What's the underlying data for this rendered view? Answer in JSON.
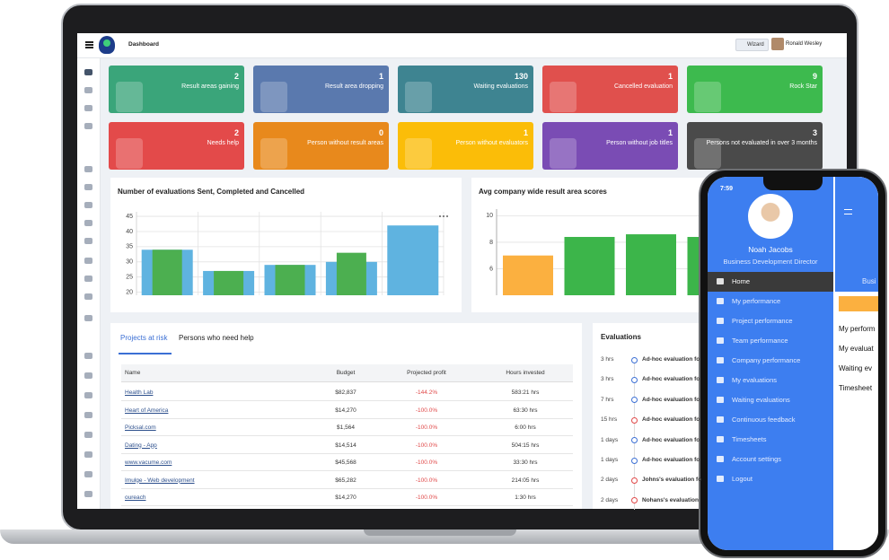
{
  "header": {
    "title": "Dashboard",
    "wizard": "Wizard",
    "user": "Ronald Wesley"
  },
  "tiles": [
    {
      "count": 2,
      "label": "Result areas gaining",
      "color": "#3aa57a"
    },
    {
      "count": 1,
      "label": "Result area dropping",
      "color": "#5a79ae"
    },
    {
      "count": 130,
      "label": "Waiting evaluations",
      "color": "#3e8491"
    },
    {
      "count": 1,
      "label": "Cancelled evaluation",
      "color": "#e0504d"
    },
    {
      "count": 9,
      "label": "Rock Star",
      "color": "#3dba4e"
    },
    {
      "count": 2,
      "label": "Needs help",
      "color": "#e34a4a"
    },
    {
      "count": 0,
      "label": "Person without result areas",
      "color": "#e8891c"
    },
    {
      "count": 1,
      "label": "Person without evaluators",
      "color": "#fbbd08"
    },
    {
      "count": 1,
      "label": "Person without job titles",
      "color": "#7a4cb4"
    },
    {
      "count": 3,
      "label": "Persons not evaluated in over 3 months",
      "color": "#4a4a4a"
    }
  ],
  "charts": [
    {
      "title": "Number of evaluations Sent, Completed and Cancelled",
      "ylim": [
        19,
        46.5
      ],
      "yticks": [
        20,
        25,
        30,
        35,
        40,
        45
      ],
      "series": [
        {
          "color": "#5fb3e0",
          "values": [
            34,
            27,
            29,
            30,
            42
          ]
        },
        {
          "color": "#4caf50",
          "values": [
            34,
            27,
            29,
            33,
            null
          ]
        }
      ]
    },
    {
      "title": "Avg company wide result area scores",
      "ylim": [
        4,
        10.5
      ],
      "yticks": [
        6,
        8,
        10
      ],
      "values": [
        7,
        8.4,
        8.6,
        8.4
      ],
      "colors": [
        "#fbb040",
        "#3cb54a",
        "#3cb54a",
        "#3cb54a"
      ]
    }
  ],
  "table": {
    "tabs": [
      "Projects at risk",
      "Persons who need help"
    ],
    "columns": [
      "Name",
      "Budget",
      "Projected profit",
      "Hours invested"
    ],
    "rows": [
      [
        "Health Lab",
        "$82,837",
        "-144.2%",
        "583:21 hrs"
      ],
      [
        "Heart of America",
        "$14,270",
        "-100.0%",
        "63:30 hrs"
      ],
      [
        "Picksal.com",
        "$1,564",
        "-100.0%",
        "6:00 hrs"
      ],
      [
        "Dating - App",
        "$14,514",
        "-100.0%",
        "504:15 hrs"
      ],
      [
        "www.vacume.com",
        "$45,568",
        "-100.0%",
        "33:30 hrs"
      ],
      [
        "Imulge - Web development",
        "$65,282",
        "-100.0%",
        "214:05 hrs"
      ],
      [
        "oureach",
        "$14,270",
        "-100.0%",
        "1:30 hrs"
      ]
    ]
  },
  "evaluations": {
    "title": "Evaluations",
    "items": [
      {
        "time": "3 hrs",
        "text": "Ad-hoc evaluation fo",
        "dot": "#3b6fd4"
      },
      {
        "time": "3 hrs",
        "text": "Ad-hoc evaluation fo",
        "dot": "#3b6fd4"
      },
      {
        "time": "7 hrs",
        "text": "Ad-hoc evaluation fo",
        "dot": "#3b6fd4"
      },
      {
        "time": "15 hrs",
        "text": "Ad-hoc evaluation fo",
        "dot": "#e04848"
      },
      {
        "time": "1 days",
        "text": "Ad-hoc evaluation fo",
        "dot": "#3b6fd4"
      },
      {
        "time": "1 days",
        "text": "Ad-hoc evaluation fo",
        "dot": "#3b6fd4"
      },
      {
        "time": "2 days",
        "text": "Johns's evaluation fo",
        "dot": "#e04848"
      },
      {
        "time": "2 days",
        "text": "Nohans's evaluation",
        "dot": "#e04848"
      }
    ]
  },
  "phone": {
    "time": "7:59",
    "name": "Noah Jacobs",
    "role": "Business Development Director",
    "menu": [
      "Home",
      "My performance",
      "Project performance",
      "Team performance",
      "Company performance",
      "My evaluations",
      "Waiting evaluations",
      "Continuous feedback",
      "Timesheets",
      "Account settings",
      "Logout"
    ],
    "peek": {
      "heading": "Busi",
      "items": [
        "My perform",
        "My evaluat",
        "Waiting ev",
        "Timesheet"
      ]
    }
  }
}
